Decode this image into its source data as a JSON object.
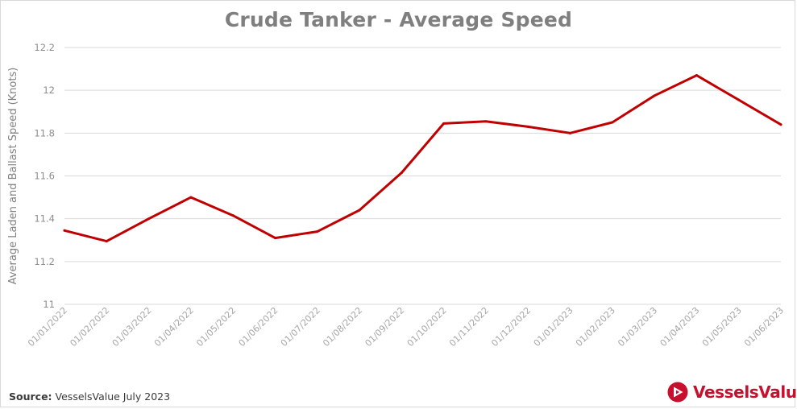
{
  "title": "Crude Tanker - Average Speed",
  "source": {
    "label": "Source:",
    "text": "VesselsValue July 2023"
  },
  "logo": {
    "text": "VesselsValue",
    "icon": "vesselsvalue-logo-icon",
    "color": "#c8102e"
  },
  "chart_data": {
    "type": "line",
    "title": "Crude Tanker - Average Speed",
    "xlabel": "",
    "ylabel": "Average Laden and Ballast Speed (Knots)",
    "ylim": [
      11,
      12.2
    ],
    "yticks": [
      "11",
      "11.2",
      "11.4",
      "11.6",
      "11.8",
      "12",
      "12.2"
    ],
    "grid": true,
    "legend": "none",
    "categories": [
      "01/01/2022",
      "01/02/2022",
      "01/03/2022",
      "01/04/2022",
      "01/05/2022",
      "01/06/2022",
      "01/07/2022",
      "01/08/2022",
      "01/09/2022",
      "01/10/2022",
      "01/11/2022",
      "01/12/2022",
      "01/01/2023",
      "01/02/2023",
      "01/03/2023",
      "01/04/2023",
      "01/05/2023",
      "01/06/2023"
    ],
    "series": [
      {
        "color": "#c00000",
        "values": [
          11.345,
          11.295,
          11.4,
          11.5,
          11.415,
          11.31,
          11.34,
          11.44,
          11.615,
          11.845,
          11.855,
          11.83,
          11.8,
          11.85,
          11.975,
          12.07,
          11.955,
          11.84
        ]
      }
    ]
  }
}
